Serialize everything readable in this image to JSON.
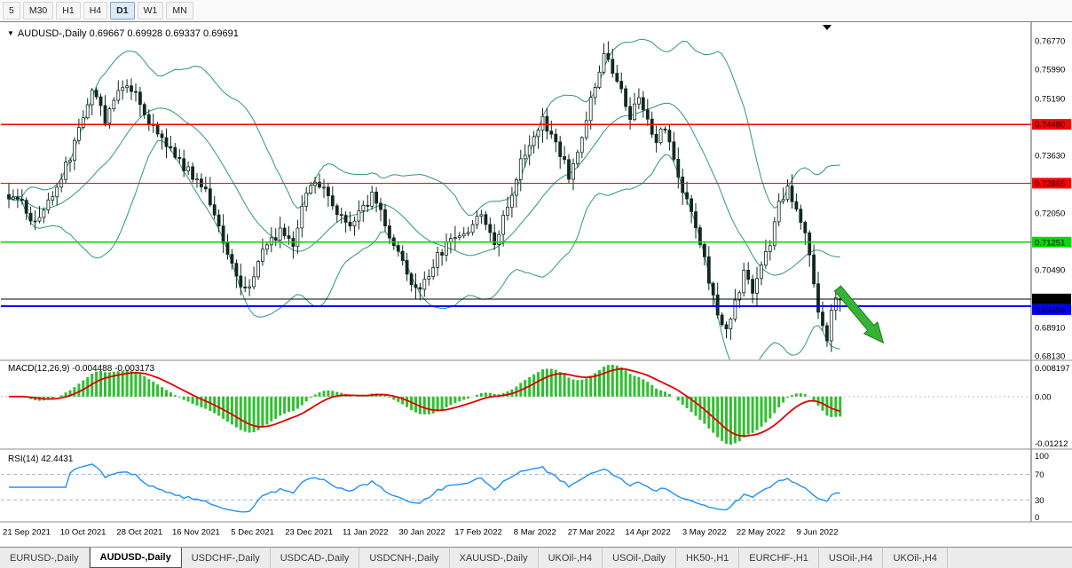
{
  "colors": {
    "bollinger": "#2f9488",
    "candle": "#11291f",
    "macd_histogram": "#2fbf2f",
    "macd_signal": "#e10000",
    "rsi_line": "#1e90ff",
    "rsi_level": "#9cb6cf",
    "arrow": "#35b335"
  },
  "toolbar": {
    "timeframes": [
      {
        "label": "5",
        "active": false
      },
      {
        "label": "M30",
        "active": false
      },
      {
        "label": "H1",
        "active": false
      },
      {
        "label": "H4",
        "active": false
      },
      {
        "label": "D1",
        "active": true
      },
      {
        "label": "W1",
        "active": false
      },
      {
        "label": "MN",
        "active": false
      }
    ]
  },
  "chart": {
    "collapse_icon": "▼",
    "title_line": "AUDUSD-,Daily 0.69667 0.69928 0.69337 0.69691"
  },
  "chart_data": {
    "type": "candlestick",
    "symbol": "AUDUSD-",
    "timeframe": "Daily",
    "last_bar": {
      "open": 0.69667,
      "high": 0.69928,
      "low": 0.69337,
      "close": 0.69691
    },
    "bars_total": 191,
    "price_axis": {
      "visible_labels": [
        "0.76770",
        "0.75990",
        "0.75190",
        "0.73630",
        "0.72050",
        "0.70490",
        "0.68910",
        "0.68130"
      ],
      "label_values": [
        0.7677,
        0.7599,
        0.7519,
        0.7363,
        0.7205,
        0.7049,
        0.6891,
        0.6813
      ],
      "min": 0.6813,
      "max": 0.7677
    },
    "time_axis_labels": [
      "21 Sep 2021",
      "10 Oct 2021",
      "28 Oct 2021",
      "16 Nov 2021",
      "5 Dec 2021",
      "23 Dec 2021",
      "11 Jan 2022",
      "30 Jan 2022",
      "17 Feb 2022",
      "8 Mar 2022",
      "27 Mar 2022",
      "14 Apr 2022",
      "3 May 2022",
      "22 May 2022",
      "9 Jun 2022"
    ],
    "close_anchors": [
      [
        0,
        0.7255
      ],
      [
        3,
        0.7225
      ],
      [
        6,
        0.7175
      ],
      [
        10,
        0.7255
      ],
      [
        14,
        0.7355
      ],
      [
        17,
        0.748
      ],
      [
        19,
        0.7545
      ],
      [
        22,
        0.7465
      ],
      [
        26,
        0.7555
      ],
      [
        29,
        0.7525
      ],
      [
        32,
        0.746
      ],
      [
        36,
        0.7395
      ],
      [
        40,
        0.733
      ],
      [
        43,
        0.7295
      ],
      [
        46,
        0.724
      ],
      [
        49,
        0.7135
      ],
      [
        53,
        0.7005
      ],
      [
        55,
        0.701
      ],
      [
        58,
        0.7105
      ],
      [
        62,
        0.715
      ],
      [
        65,
        0.712
      ],
      [
        68,
        0.7265
      ],
      [
        71,
        0.729
      ],
      [
        74,
        0.7225
      ],
      [
        77,
        0.7165
      ],
      [
        80,
        0.7205
      ],
      [
        83,
        0.725
      ],
      [
        86,
        0.7175
      ],
      [
        89,
        0.7095
      ],
      [
        92,
        0.7005
      ],
      [
        94,
        0.6985
      ],
      [
        97,
        0.7065
      ],
      [
        101,
        0.7135
      ],
      [
        105,
        0.716
      ],
      [
        108,
        0.7195
      ],
      [
        111,
        0.713
      ],
      [
        114,
        0.7215
      ],
      [
        117,
        0.7355
      ],
      [
        120,
        0.7405
      ],
      [
        122,
        0.747
      ],
      [
        125,
        0.739
      ],
      [
        128,
        0.731
      ],
      [
        130,
        0.738
      ],
      [
        133,
        0.751
      ],
      [
        136,
        0.765
      ],
      [
        138,
        0.7595
      ],
      [
        140,
        0.7545
      ],
      [
        142,
        0.7475
      ],
      [
        144,
        0.7535
      ],
      [
        146,
        0.7455
      ],
      [
        148,
        0.7395
      ],
      [
        150,
        0.7445
      ],
      [
        152,
        0.734
      ],
      [
        154,
        0.7255
      ],
      [
        156,
        0.7215
      ],
      [
        158,
        0.7125
      ],
      [
        160,
        0.7025
      ],
      [
        162,
        0.6935
      ],
      [
        164,
        0.6875
      ],
      [
        166,
        0.6965
      ],
      [
        168,
        0.7035
      ],
      [
        170,
        0.6985
      ],
      [
        172,
        0.7055
      ],
      [
        174,
        0.7115
      ],
      [
        176,
        0.7225
      ],
      [
        178,
        0.7275
      ],
      [
        180,
        0.722
      ],
      [
        182,
        0.7145
      ],
      [
        184,
        0.702
      ],
      [
        185,
        0.6945
      ],
      [
        186,
        0.6885
      ],
      [
        187,
        0.6865
      ],
      [
        188,
        0.6935
      ],
      [
        189,
        0.6975
      ],
      [
        190,
        0.69691
      ]
    ],
    "bollinger_bands": {
      "period": 20,
      "deviations": 2
    },
    "horizontal_lines": [
      {
        "price": 0.7448,
        "label": "0.74480",
        "color": "#ff0000"
      },
      {
        "price": 0.72865,
        "label": "0.72865",
        "color": "#ff0000"
      },
      {
        "price": 0.71251,
        "label": "0.71251",
        "color": "#00dd00"
      },
      {
        "price": 0.69691,
        "label": "0.69691",
        "color": "#000000"
      },
      {
        "price": 0.69494,
        "label": "0.69494",
        "color": "#0000ff"
      }
    ],
    "annotations": [
      {
        "type": "arrow",
        "direction": "down-right",
        "color": "#35b335"
      }
    ],
    "macd": {
      "label": "MACD(12,26,9) -0.004488 -0.003173",
      "fast": 12,
      "slow": 26,
      "signal": 9,
      "main_value": -0.004488,
      "signal_value": -0.003173,
      "scale_labels": [
        "0.008197",
        "0.00",
        "-0.01212"
      ]
    },
    "rsi": {
      "label": "RSI(14) 42.4431",
      "period": 14,
      "value": 42.4431,
      "levels": [
        70,
        30
      ],
      "scale_labels": [
        "100",
        "70",
        "30",
        "0"
      ]
    }
  },
  "tabs": [
    {
      "label": "EURUSD-,Daily",
      "active": false
    },
    {
      "label": "AUDUSD-,Daily",
      "active": true
    },
    {
      "label": "USDCHF-,Daily",
      "active": false
    },
    {
      "label": "USDCAD-,Daily",
      "active": false
    },
    {
      "label": "USDCNH-,Daily",
      "active": false
    },
    {
      "label": "XAUUSD-,Daily",
      "active": false
    },
    {
      "label": "UKOil-,H4",
      "active": false
    },
    {
      "label": "USOil-,Daily",
      "active": false
    },
    {
      "label": "HK50-,H1",
      "active": false
    },
    {
      "label": "EURCHF-,H1",
      "active": false
    },
    {
      "label": "USOil-,H4",
      "active": false
    },
    {
      "label": "UKOil-,H4",
      "active": false
    }
  ]
}
